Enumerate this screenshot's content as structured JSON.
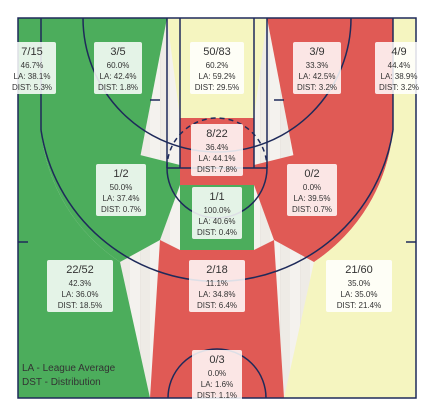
{
  "chart_data": {
    "type": "heatmap",
    "title": "",
    "colors": {
      "above": "#e05a55",
      "average": "#f5f5c0",
      "below": "#4cad5c",
      "court_lines": "#1e2a5a",
      "label_box": "#ffffff"
    },
    "zones": [
      {
        "id": "left-corner-three",
        "fraction": "7/15",
        "fg_pct": "46.7%",
        "la": "LA: 38.1%",
        "dist": "DIST: 5.3%",
        "rating": "below"
      },
      {
        "id": "left-wing-three",
        "fraction": "3/5",
        "fg_pct": "60.0%",
        "la": "LA: 42.4%",
        "dist": "DIST: 1.8%",
        "rating": "below"
      },
      {
        "id": "top-key-three",
        "fraction": "50/83",
        "fg_pct": "60.2%",
        "la": "LA: 59.2%",
        "dist": "DIST: 29.5%",
        "rating": "average"
      },
      {
        "id": "right-wing-three",
        "fraction": "3/9",
        "fg_pct": "33.3%",
        "la": "LA: 42.5%",
        "dist": "DIST: 3.2%",
        "rating": "above"
      },
      {
        "id": "right-corner-three",
        "fraction": "4/9",
        "fg_pct": "44.4%",
        "la": "LA: 38.9%",
        "dist": "DIST: 3.2%",
        "rating": "average"
      },
      {
        "id": "free-throw-top",
        "fraction": "8/22",
        "fg_pct": "36.4%",
        "la": "LA: 44.1%",
        "dist": "DIST: 7.8%",
        "rating": "above"
      },
      {
        "id": "left-elbow",
        "fraction": "1/2",
        "fg_pct": "50.0%",
        "la": "LA: 37.4%",
        "dist": "DIST: 0.7%",
        "rating": "below"
      },
      {
        "id": "right-elbow",
        "fraction": "0/2",
        "fg_pct": "0.0%",
        "la": "LA: 39.5%",
        "dist": "DIST: 0.7%",
        "rating": "above"
      },
      {
        "id": "paint-center",
        "fraction": "1/1",
        "fg_pct": "100.0%",
        "la": "LA: 40.6%",
        "dist": "DIST: 0.4%",
        "rating": "below"
      },
      {
        "id": "left-baseline-mid",
        "fraction": "22/52",
        "fg_pct": "42.3%",
        "la": "LA: 36.0%",
        "dist": "DIST: 18.5%",
        "rating": "below"
      },
      {
        "id": "paint-lower",
        "fraction": "2/18",
        "fg_pct": "11.1%",
        "la": "LA: 34.8%",
        "dist": "DIST: 6.4%",
        "rating": "above"
      },
      {
        "id": "right-baseline-mid",
        "fraction": "21/60",
        "fg_pct": "35.0%",
        "la": "LA: 35.0%",
        "dist": "DIST: 21.4%",
        "rating": "average"
      },
      {
        "id": "restricted-area",
        "fraction": "0/3",
        "fg_pct": "0.0%",
        "la": "LA: 1.6%",
        "dist": "DIST: 1.1%",
        "rating": "above"
      }
    ],
    "legend": [
      "LA - League Average",
      "DST - Distribution"
    ],
    "legend_position": "bottom-left"
  }
}
